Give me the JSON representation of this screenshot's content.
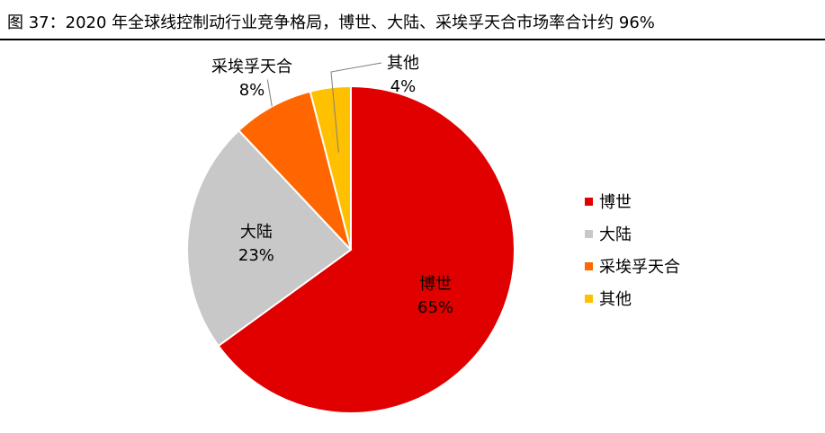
{
  "figure": {
    "title": "图 37：2020 年全球线控制动行业竞争格局，博世、大陆、采埃孚天合市场率合计约 96%"
  },
  "chart_data": {
    "type": "pie",
    "title": "",
    "slices": [
      {
        "name": "博世",
        "value": 65,
        "label": "65%",
        "color": "#E00000"
      },
      {
        "name": "大陆",
        "value": 23,
        "label": "23%",
        "color": "#C8C8C8"
      },
      {
        "name": "采埃孚天合",
        "value": 8,
        "label": "8%",
        "color": "#FF6600"
      },
      {
        "name": "其他",
        "value": 4,
        "label": "4%",
        "color": "#FFC000"
      }
    ],
    "legend": {
      "position": "right",
      "items": [
        "博世",
        "大陆",
        "采埃孚天合",
        "其他"
      ]
    }
  }
}
